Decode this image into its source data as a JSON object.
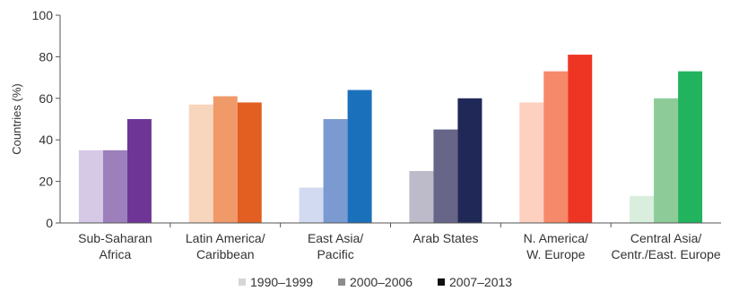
{
  "chart_data": {
    "type": "bar",
    "ylabel": "Countries (%)",
    "ylim": [
      0,
      100
    ],
    "yticks": [
      "0",
      "20",
      "40",
      "60",
      "80",
      "100"
    ],
    "grid": false,
    "legend_position": "bottom",
    "categories": [
      [
        "Sub-Saharan",
        "Africa"
      ],
      [
        "Latin America/",
        "Caribbean"
      ],
      [
        "East Asia/",
        "Pacific"
      ],
      [
        "Arab States"
      ],
      [
        "N. America/",
        "W. Europe"
      ],
      [
        "Central Asia/",
        "Centr./East. Europe"
      ]
    ],
    "series": [
      {
        "name": "1990–1999",
        "values": [
          35,
          57,
          17,
          25,
          58,
          13
        ]
      },
      {
        "name": "2000–2006",
        "values": [
          35,
          61,
          50,
          45,
          73,
          60
        ]
      },
      {
        "name": "2007–2013",
        "values": [
          50,
          58,
          64,
          60,
          81,
          73
        ]
      }
    ],
    "group_colors": [
      [
        "#d6c9e5",
        "#9c7fbb",
        "#6e3596"
      ],
      [
        "#f8d5bd",
        "#f09a6a",
        "#e35f21"
      ],
      [
        "#d2daf1",
        "#7b9ad1",
        "#1b70bb"
      ],
      [
        "#bdbac9",
        "#676588",
        "#202857"
      ],
      [
        "#fdd0c0",
        "#f6896a",
        "#ee3523"
      ],
      [
        "#d9eedd",
        "#8dcc98",
        "#22b35e"
      ]
    ],
    "legend_colors": [
      "#d6d6d6",
      "#8c8c8c",
      "#111111"
    ]
  }
}
